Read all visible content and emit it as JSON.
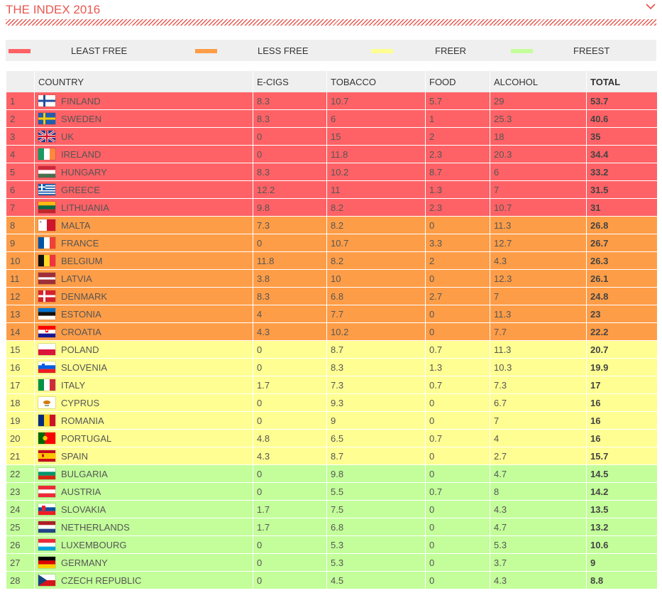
{
  "header": {
    "title": "THE INDEX 2016",
    "chevron_icon": "chevron-down-icon"
  },
  "legend": [
    {
      "label": "LEAST FREE",
      "color": "#fe6266"
    },
    {
      "label": "LESS FREE",
      "color": "#fe9d47"
    },
    {
      "label": "FREER",
      "color": "#fefe93"
    },
    {
      "label": "FREEST",
      "color": "#c3fe9a"
    }
  ],
  "table": {
    "columns": [
      "",
      "COUNTRY",
      "E-CIGS",
      "TOBACCO",
      "FOOD",
      "ALCOHOL",
      "TOTAL"
    ],
    "rows": [
      {
        "rank": "1",
        "country": "FINLAND",
        "flag": "finland-flag-icon",
        "ecigs": "8.3",
        "tobacco": "10.7",
        "food": "5.7",
        "alcohol": "29",
        "total": "53.7",
        "band": "lf"
      },
      {
        "rank": "2",
        "country": "SWEDEN",
        "flag": "sweden-flag-icon",
        "ecigs": "8.3",
        "tobacco": "6",
        "food": "1",
        "alcohol": "25.3",
        "total": "40.6",
        "band": "lf"
      },
      {
        "rank": "3",
        "country": "UK",
        "flag": "uk-flag-icon",
        "ecigs": "0",
        "tobacco": "15",
        "food": "2",
        "alcohol": "18",
        "total": "35",
        "band": "lf"
      },
      {
        "rank": "4",
        "country": "IRELAND",
        "flag": "ireland-flag-icon",
        "ecigs": "0",
        "tobacco": "11.8",
        "food": "2.3",
        "alcohol": "20.3",
        "total": "34.4",
        "band": "lf"
      },
      {
        "rank": "5",
        "country": "HUNGARY",
        "flag": "hungary-flag-icon",
        "ecigs": "8.3",
        "tobacco": "10.2",
        "food": "8.7",
        "alcohol": "6",
        "total": "33.2",
        "band": "lf"
      },
      {
        "rank": "6",
        "country": "GREECE",
        "flag": "greece-flag-icon",
        "ecigs": "12.2",
        "tobacco": "11",
        "food": "1.3",
        "alcohol": "7",
        "total": "31.5",
        "band": "lf"
      },
      {
        "rank": "7",
        "country": "LITHUANIA",
        "flag": "lithuania-flag-icon",
        "ecigs": "9.8",
        "tobacco": "8.2",
        "food": "2.3",
        "alcohol": "10.7",
        "total": "31",
        "band": "lf"
      },
      {
        "rank": "8",
        "country": "MALTA",
        "flag": "malta-flag-icon",
        "ecigs": "7.3",
        "tobacco": "8.2",
        "food": "0",
        "alcohol": "11.3",
        "total": "26.8",
        "band": "ls"
      },
      {
        "rank": "9",
        "country": "FRANCE",
        "flag": "france-flag-icon",
        "ecigs": "0",
        "tobacco": "10.7",
        "food": "3.3",
        "alcohol": "12.7",
        "total": "26.7",
        "band": "ls"
      },
      {
        "rank": "10",
        "country": "BELGIUM",
        "flag": "belgium-flag-icon",
        "ecigs": "11.8",
        "tobacco": "8.2",
        "food": "2",
        "alcohol": "4.3",
        "total": "26.3",
        "band": "ls"
      },
      {
        "rank": "11",
        "country": "LATVIA",
        "flag": "latvia-flag-icon",
        "ecigs": "3.8",
        "tobacco": "10",
        "food": "0",
        "alcohol": "12.3",
        "total": "26.1",
        "band": "ls"
      },
      {
        "rank": "12",
        "country": "DENMARK",
        "flag": "denmark-flag-icon",
        "ecigs": "8.3",
        "tobacco": "6.8",
        "food": "2.7",
        "alcohol": "7",
        "total": "24.8",
        "band": "ls"
      },
      {
        "rank": "13",
        "country": "ESTONIA",
        "flag": "estonia-flag-icon",
        "ecigs": "4",
        "tobacco": "7.7",
        "food": "0",
        "alcohol": "11.3",
        "total": "23",
        "band": "ls"
      },
      {
        "rank": "14",
        "country": "CROATIA",
        "flag": "croatia-flag-icon",
        "ecigs": "4.3",
        "tobacco": "10.2",
        "food": "0",
        "alcohol": "7.7",
        "total": "22.2",
        "band": "ls"
      },
      {
        "rank": "15",
        "country": "POLAND",
        "flag": "poland-flag-icon",
        "ecigs": "0",
        "tobacco": "8.7",
        "food": "0.7",
        "alcohol": "11.3",
        "total": "20.7",
        "band": "fr"
      },
      {
        "rank": "16",
        "country": "SLOVENIA",
        "flag": "slovenia-flag-icon",
        "ecigs": "0",
        "tobacco": "8.3",
        "food": "1.3",
        "alcohol": "10.3",
        "total": "19.9",
        "band": "fr"
      },
      {
        "rank": "17",
        "country": "ITALY",
        "flag": "italy-flag-icon",
        "ecigs": "1.7",
        "tobacco": "7.3",
        "food": "0.7",
        "alcohol": "7.3",
        "total": "17",
        "band": "fr"
      },
      {
        "rank": "18",
        "country": "CYPRUS",
        "flag": "cyprus-flag-icon",
        "ecigs": "0",
        "tobacco": "9.3",
        "food": "0",
        "alcohol": "6.7",
        "total": "16",
        "band": "fr"
      },
      {
        "rank": "19",
        "country": "ROMANIA",
        "flag": "romania-flag-icon",
        "ecigs": "0",
        "tobacco": "9",
        "food": "0",
        "alcohol": "7",
        "total": "16",
        "band": "fr"
      },
      {
        "rank": "20",
        "country": "PORTUGAL",
        "flag": "portugal-flag-icon",
        "ecigs": "4.8",
        "tobacco": "6.5",
        "food": "0.7",
        "alcohol": "4",
        "total": "16",
        "band": "fr"
      },
      {
        "rank": "21",
        "country": "SPAIN",
        "flag": "spain-flag-icon",
        "ecigs": "4.3",
        "tobacco": "8.7",
        "food": "0",
        "alcohol": "2.7",
        "total": "15.7",
        "band": "fr"
      },
      {
        "rank": "22",
        "country": "BULGARIA",
        "flag": "bulgaria-flag-icon",
        "ecigs": "0",
        "tobacco": "9.8",
        "food": "0",
        "alcohol": "4.7",
        "total": "14.5",
        "band": "fs"
      },
      {
        "rank": "23",
        "country": "AUSTRIA",
        "flag": "austria-flag-icon",
        "ecigs": "0",
        "tobacco": "5.5",
        "food": "0.7",
        "alcohol": "8",
        "total": "14.2",
        "band": "fs"
      },
      {
        "rank": "24",
        "country": "SLOVAKIA",
        "flag": "slovakia-flag-icon",
        "ecigs": "1.7",
        "tobacco": "7.5",
        "food": "0",
        "alcohol": "4.3",
        "total": "13.5",
        "band": "fs"
      },
      {
        "rank": "25",
        "country": "NETHERLANDS",
        "flag": "netherlands-flag-icon",
        "ecigs": "1.7",
        "tobacco": "6.8",
        "food": "0",
        "alcohol": "4.7",
        "total": "13.2",
        "band": "fs"
      },
      {
        "rank": "26",
        "country": "LUXEMBOURG",
        "flag": "luxembourg-flag-icon",
        "ecigs": "0",
        "tobacco": "5.3",
        "food": "0",
        "alcohol": "5.3",
        "total": "10.6",
        "band": "fs"
      },
      {
        "rank": "27",
        "country": "GERMANY",
        "flag": "germany-flag-icon",
        "ecigs": "0",
        "tobacco": "5.3",
        "food": "0",
        "alcohol": "3.7",
        "total": "9",
        "band": "fs"
      },
      {
        "rank": "28",
        "country": "CZECH REPUBLIC",
        "flag": "czech-republic-flag-icon",
        "ecigs": "0",
        "tobacco": "4.5",
        "food": "0",
        "alcohol": "4.3",
        "total": "8.8",
        "band": "fs"
      }
    ]
  }
}
